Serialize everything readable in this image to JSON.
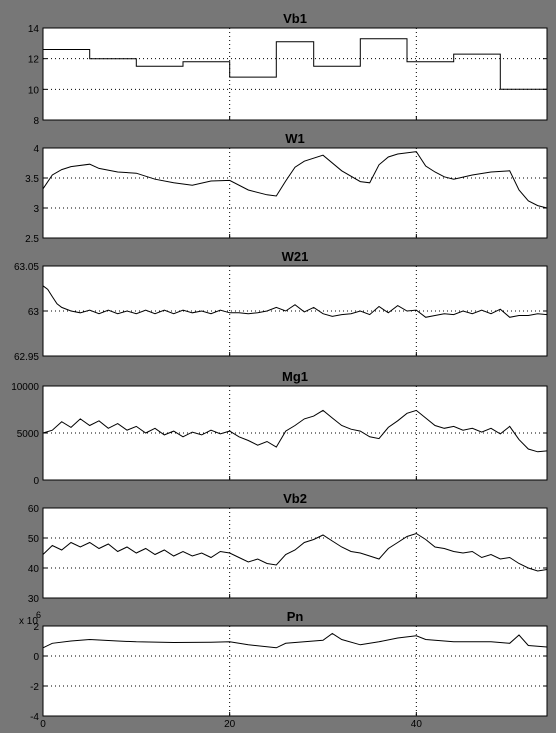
{
  "window": {
    "background": "#777777",
    "plot_background": "#ffffff",
    "line_color": "#000000",
    "grid_color": "#000000"
  },
  "chart_data": [
    {
      "type": "line",
      "title": "Vb1",
      "xlim": [
        0,
        54
      ],
      "ylim": [
        8,
        14
      ],
      "yticks": [
        8,
        10,
        12,
        14
      ],
      "xticks": [
        20,
        40
      ],
      "grid": true,
      "series": [
        {
          "step": true,
          "x": [
            0,
            5,
            5,
            10,
            10,
            15,
            15,
            20,
            20,
            25,
            25,
            29,
            29,
            34,
            34,
            39,
            39,
            44,
            44,
            49,
            49,
            54
          ],
          "y": [
            12.6,
            12.6,
            12.0,
            12.0,
            11.5,
            11.5,
            11.8,
            11.8,
            10.8,
            10.8,
            13.1,
            13.1,
            11.5,
            11.5,
            13.3,
            13.3,
            11.8,
            11.8,
            12.3,
            12.3,
            10.0,
            10.0
          ]
        }
      ]
    },
    {
      "type": "line",
      "title": "W1",
      "xlim": [
        0,
        54
      ],
      "ylim": [
        2.5,
        4
      ],
      "yticks": [
        2.5,
        3,
        3.5,
        4
      ],
      "xticks": [
        20,
        40
      ],
      "grid": true,
      "series": [
        {
          "x": [
            0,
            1,
            2,
            3,
            5,
            6,
            8,
            10,
            12,
            14,
            16,
            18,
            20,
            22,
            24,
            25,
            26,
            27,
            28,
            30,
            32,
            34,
            35,
            36,
            37,
            38,
            40,
            41,
            42,
            43,
            44,
            46,
            48,
            50,
            51,
            52,
            53,
            54
          ],
          "y": [
            3.32,
            3.55,
            3.64,
            3.69,
            3.73,
            3.66,
            3.6,
            3.58,
            3.48,
            3.42,
            3.38,
            3.45,
            3.46,
            3.3,
            3.22,
            3.2,
            3.45,
            3.68,
            3.78,
            3.88,
            3.62,
            3.44,
            3.42,
            3.72,
            3.85,
            3.9,
            3.94,
            3.7,
            3.6,
            3.52,
            3.48,
            3.55,
            3.6,
            3.62,
            3.3,
            3.12,
            3.04,
            3.0
          ]
        }
      ]
    },
    {
      "type": "line",
      "title": "W21",
      "xlim": [
        0,
        54
      ],
      "ylim": [
        62.95,
        63.05
      ],
      "yticks": [
        62.95,
        63,
        63.05
      ],
      "xticks": [
        20,
        40
      ],
      "grid": true,
      "series": [
        {
          "x": [
            0,
            0.5,
            1,
            1.5,
            2,
            3,
            4,
            5,
            6,
            7,
            8,
            9,
            10,
            11,
            12,
            13,
            14,
            15,
            16,
            17,
            18,
            19,
            20,
            21,
            22,
            23,
            24,
            25,
            26,
            27,
            28,
            29,
            30,
            31,
            32,
            33,
            34,
            35,
            36,
            37,
            38,
            39,
            40,
            41,
            42,
            43,
            44,
            45,
            46,
            47,
            48,
            49,
            50,
            51,
            52,
            53,
            54
          ],
          "y": [
            63.028,
            63.024,
            63.016,
            63.008,
            63.004,
            63.0,
            62.998,
            63.001,
            62.997,
            63.001,
            62.997,
            63.0,
            62.997,
            63.001,
            62.997,
            63.001,
            62.997,
            63.001,
            62.998,
            63.0,
            62.997,
            63.001,
            62.998,
            62.998,
            62.997,
            62.998,
            63.0,
            63.004,
            63.0,
            63.007,
            62.999,
            63.004,
            62.997,
            62.994,
            62.996,
            62.997,
            63.0,
            62.996,
            63.005,
            62.998,
            63.006,
            63.0,
            63.001,
            62.993,
            62.995,
            62.997,
            62.996,
            63.0,
            62.997,
            63.001,
            62.997,
            63.002,
            62.993,
            62.995,
            62.995,
            62.997,
            62.996
          ]
        }
      ]
    },
    {
      "type": "line",
      "title": "Mg1",
      "xlim": [
        0,
        54
      ],
      "ylim": [
        0,
        10000
      ],
      "yticks": [
        0,
        5000,
        10000
      ],
      "xticks": [
        20,
        40
      ],
      "grid": true,
      "series": [
        {
          "x": [
            0,
            1,
            2,
            3,
            4,
            5,
            6,
            7,
            8,
            9,
            10,
            11,
            12,
            13,
            14,
            15,
            16,
            17,
            18,
            19,
            20,
            21,
            22,
            23,
            24,
            25,
            26,
            27,
            28,
            29,
            30,
            31,
            32,
            33,
            34,
            35,
            36,
            37,
            38,
            39,
            40,
            41,
            42,
            43,
            44,
            45,
            46,
            47,
            48,
            49,
            50,
            51,
            52,
            53,
            54
          ],
          "y": [
            5000,
            5300,
            6200,
            5600,
            6500,
            5800,
            6300,
            5500,
            6000,
            5300,
            5700,
            5000,
            5500,
            4800,
            5200,
            4600,
            5100,
            4800,
            5300,
            4900,
            5200,
            4600,
            4200,
            3700,
            4100,
            3500,
            5200,
            5800,
            6500,
            6800,
            7400,
            6600,
            5800,
            5400,
            5200,
            4600,
            4400,
            5600,
            6300,
            7100,
            7400,
            6600,
            5800,
            5500,
            5700,
            5300,
            5500,
            5100,
            5500,
            4900,
            5700,
            4300,
            3300,
            3000,
            3100
          ]
        }
      ]
    },
    {
      "type": "line",
      "title": "Vb2",
      "xlim": [
        0,
        54
      ],
      "ylim": [
        30,
        60
      ],
      "yticks": [
        30,
        40,
        50,
        60
      ],
      "xticks": [
        20,
        40
      ],
      "grid": true,
      "series": [
        {
          "x": [
            0,
            1,
            2,
            3,
            4,
            5,
            6,
            7,
            8,
            9,
            10,
            11,
            12,
            13,
            14,
            15,
            16,
            17,
            18,
            19,
            20,
            21,
            22,
            23,
            24,
            25,
            26,
            27,
            28,
            29,
            30,
            31,
            32,
            33,
            34,
            35,
            36,
            37,
            38,
            39,
            40,
            41,
            42,
            43,
            44,
            45,
            46,
            47,
            48,
            49,
            50,
            51,
            52,
            53,
            54
          ],
          "y": [
            44.5,
            47.5,
            46.0,
            48.5,
            47.0,
            48.5,
            46.5,
            48.0,
            45.5,
            47.0,
            45.0,
            46.5,
            44.5,
            46.0,
            44.0,
            45.5,
            44.0,
            45.0,
            43.5,
            45.5,
            45.0,
            43.5,
            42.0,
            43.0,
            41.5,
            41.0,
            44.5,
            46.0,
            48.5,
            49.5,
            51.0,
            49.0,
            47.0,
            45.5,
            45.0,
            44.0,
            43.0,
            46.5,
            48.5,
            50.5,
            51.5,
            49.5,
            47.0,
            46.5,
            45.5,
            45.0,
            45.5,
            43.5,
            44.5,
            43.0,
            43.5,
            41.5,
            40.0,
            39.0,
            39.5
          ]
        }
      ]
    },
    {
      "type": "line",
      "title": "Pn",
      "exponent_label": "x 10",
      "exponent_power": "6",
      "xlim": [
        0,
        54
      ],
      "ylim": [
        -4,
        2
      ],
      "yticks": [
        -4,
        -2,
        0,
        2
      ],
      "xticks": [
        0,
        20,
        40
      ],
      "grid": true,
      "series": [
        {
          "x": [
            0,
            1,
            3,
            5,
            8,
            10,
            14,
            18,
            20,
            22,
            25,
            26,
            28,
            30,
            31,
            32,
            34,
            36,
            38,
            40,
            41,
            44,
            48,
            50,
            51,
            52,
            54
          ],
          "y": [
            0.55,
            0.85,
            1.0,
            1.1,
            1.0,
            0.95,
            0.9,
            0.92,
            0.95,
            0.75,
            0.55,
            0.85,
            0.95,
            1.05,
            1.5,
            1.1,
            0.75,
            0.95,
            1.2,
            1.35,
            1.1,
            0.95,
            0.95,
            0.85,
            1.4,
            0.7,
            0.6
          ]
        }
      ]
    }
  ]
}
